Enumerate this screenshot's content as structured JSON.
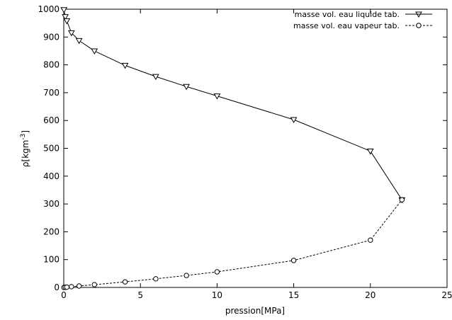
{
  "chart_data": {
    "type": "line",
    "xlabel": "pression[MPa]",
    "ylabel": "ρ[kgm",
    "ylabel_exponent": "-3",
    "ylabel_close": "]",
    "xlim": [
      0,
      25
    ],
    "ylim": [
      0,
      1000
    ],
    "xticks": [
      0,
      5,
      10,
      15,
      20,
      25
    ],
    "yticks": [
      0,
      100,
      200,
      300,
      400,
      500,
      600,
      700,
      800,
      900,
      1000
    ],
    "grid": false,
    "legend_position": "top-right",
    "series": [
      {
        "name": "masse vol. eau liquide tab.",
        "marker": "triangle-down",
        "line": "solid",
        "color": "#000000",
        "x": [
          0.01,
          0.1,
          0.2,
          0.5,
          1,
          2,
          4,
          6,
          8,
          10,
          15,
          20,
          22.06
        ],
        "y": [
          998,
          973,
          958,
          915,
          887,
          850,
          798,
          758,
          722,
          688,
          603,
          490,
          315
        ]
      },
      {
        "name": "masse vol. eau vapeur tab.",
        "marker": "circle",
        "line": "dashed",
        "color": "#000000",
        "x": [
          0.01,
          0.1,
          0.2,
          0.5,
          1,
          2,
          4,
          6,
          8,
          10,
          15,
          20,
          22.06
        ],
        "y": [
          0.1,
          0.6,
          1.1,
          2.7,
          5.1,
          10,
          20,
          31,
          43,
          56,
          97,
          170,
          315
        ]
      }
    ]
  }
}
